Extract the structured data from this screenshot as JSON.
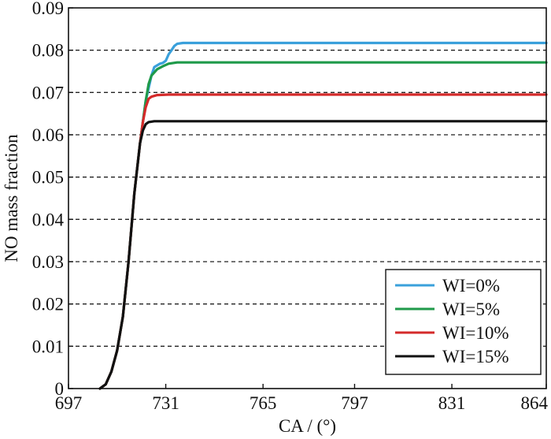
{
  "chart_data": {
    "type": "line",
    "title": "",
    "xlabel": "CA / (°)",
    "ylabel": "NO mass fraction",
    "xlim": [
      697,
      864
    ],
    "ylim": [
      0,
      0.09
    ],
    "x_ticks": [
      697,
      731,
      765,
      797,
      831,
      864
    ],
    "x_tick_labels": [
      "697",
      "731",
      "765",
      "797",
      "831",
      "864"
    ],
    "y_ticks": [
      0,
      0.01,
      0.02,
      0.03,
      0.04,
      0.05,
      0.06,
      0.07,
      0.08,
      0.09
    ],
    "y_tick_labels": [
      "0",
      "0.01",
      "0.02",
      "0.03",
      "0.04",
      "0.05",
      "0.06",
      "0.07",
      "0.08",
      "0.09"
    ],
    "grid": "horizontal dashed",
    "legend_position": "bottom-right",
    "series": [
      {
        "name": "WI=0%",
        "color": "#3aa0db",
        "points": [
          [
            708,
            0
          ],
          [
            710,
            0.001
          ],
          [
            712,
            0.004
          ],
          [
            714,
            0.009
          ],
          [
            716,
            0.017
          ],
          [
            718,
            0.03
          ],
          [
            720,
            0.046
          ],
          [
            722,
            0.058
          ],
          [
            723,
            0.063
          ],
          [
            724,
            0.068
          ],
          [
            725,
            0.071
          ],
          [
            726,
            0.074
          ],
          [
            727,
            0.076
          ],
          [
            729,
            0.0768
          ],
          [
            730,
            0.077
          ],
          [
            731,
            0.0775
          ],
          [
            732,
            0.079
          ],
          [
            733,
            0.08
          ],
          [
            734,
            0.081
          ],
          [
            735,
            0.0815
          ],
          [
            737,
            0.0817
          ],
          [
            740,
            0.0817
          ],
          [
            864,
            0.0817
          ]
        ]
      },
      {
        "name": "WI=5%",
        "color": "#1f9a4a",
        "points": [
          [
            708,
            0
          ],
          [
            710,
            0.001
          ],
          [
            712,
            0.004
          ],
          [
            714,
            0.009
          ],
          [
            716,
            0.017
          ],
          [
            718,
            0.03
          ],
          [
            720,
            0.046
          ],
          [
            722,
            0.058
          ],
          [
            723,
            0.063
          ],
          [
            724,
            0.068
          ],
          [
            725,
            0.072
          ],
          [
            726,
            0.074
          ],
          [
            728,
            0.0755
          ],
          [
            730,
            0.0762
          ],
          [
            732,
            0.0768
          ],
          [
            735,
            0.0771
          ],
          [
            740,
            0.0771
          ],
          [
            864,
            0.0771
          ]
        ]
      },
      {
        "name": "WI=10%",
        "color": "#d42a2a",
        "points": [
          [
            708,
            0
          ],
          [
            710,
            0.001
          ],
          [
            712,
            0.004
          ],
          [
            714,
            0.009
          ],
          [
            716,
            0.017
          ],
          [
            718,
            0.03
          ],
          [
            720,
            0.046
          ],
          [
            722,
            0.058
          ],
          [
            723,
            0.063
          ],
          [
            724,
            0.0665
          ],
          [
            725,
            0.0685
          ],
          [
            726,
            0.069
          ],
          [
            728,
            0.0694
          ],
          [
            732,
            0.0695
          ],
          [
            864,
            0.0695
          ]
        ]
      },
      {
        "name": "WI=15%",
        "color": "#111111",
        "points": [
          [
            708,
            0
          ],
          [
            710,
            0.001
          ],
          [
            712,
            0.004
          ],
          [
            714,
            0.009
          ],
          [
            716,
            0.017
          ],
          [
            718,
            0.03
          ],
          [
            720,
            0.046
          ],
          [
            722,
            0.058
          ],
          [
            723,
            0.061
          ],
          [
            724,
            0.0625
          ],
          [
            725,
            0.063
          ],
          [
            727,
            0.0632
          ],
          [
            864,
            0.0632
          ]
        ]
      }
    ]
  }
}
